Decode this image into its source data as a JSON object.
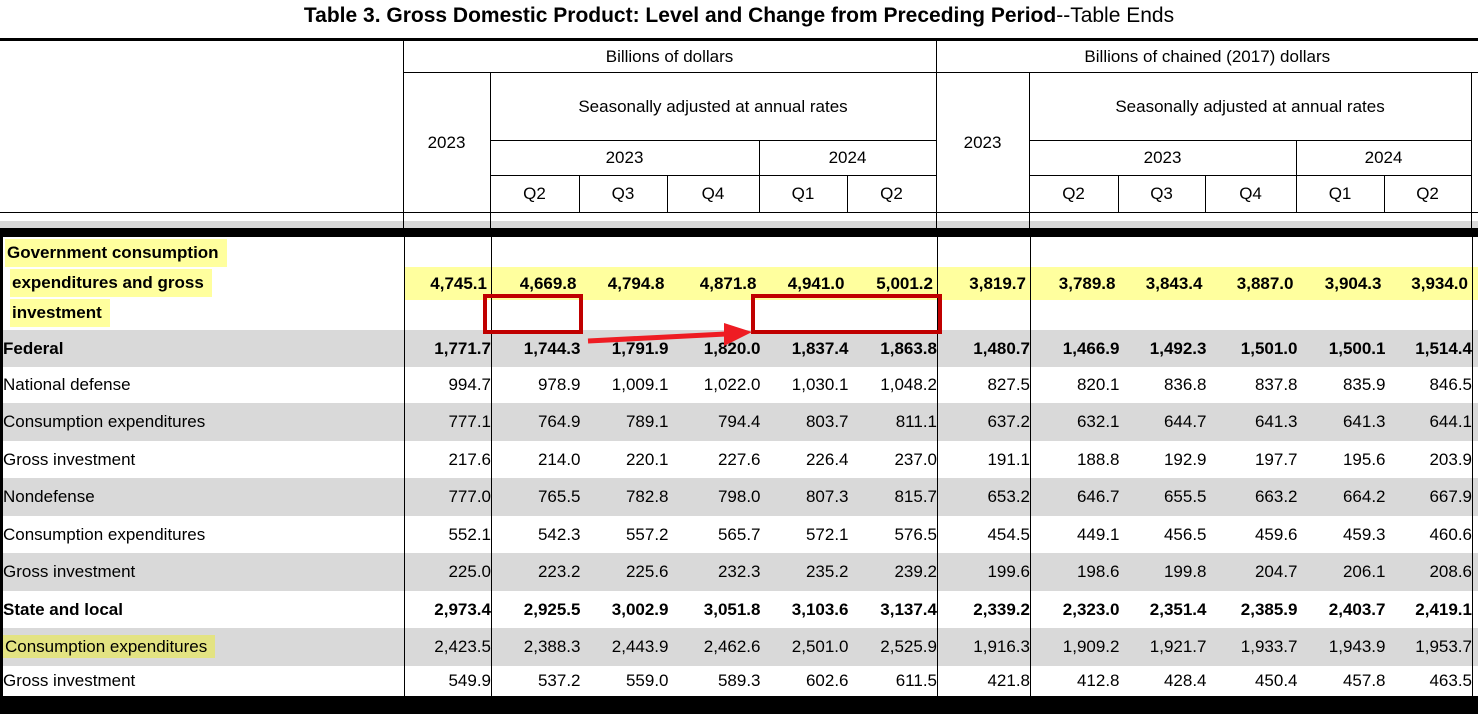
{
  "title": {
    "bold_part": "Table 3. Gross Domestic Product: Level and Change from Preceding Period",
    "suffix": "--Table Ends"
  },
  "header": {
    "left_group": "Billions of dollars",
    "right_group": "Billions of chained (2017) dollars",
    "left_annual": "2023",
    "right_annual": "2023",
    "saar": "Seasonally adjusted at annual rates",
    "left_year1": "2023",
    "left_year2": "2024",
    "right_year1": "2023",
    "right_year2": "2024",
    "quarters": [
      "Q2",
      "Q3",
      "Q4",
      "Q1",
      "Q2"
    ]
  },
  "rows": [
    {
      "label": "Government consumption expenditures and gross investment",
      "label_lines": [
        "Government consumption",
        "expenditures and gross",
        "investment"
      ],
      "level": 0,
      "bold": true,
      "values_highlight": true,
      "values": [
        "4,745.1",
        "4,669.8",
        "4,794.8",
        "4,871.8",
        "4,941.0",
        "5,001.2",
        "3,819.7",
        "3,789.8",
        "3,843.4",
        "3,887.0",
        "3,904.3",
        "3,934.0"
      ]
    },
    {
      "label": "Federal",
      "level": 1,
      "bold": true,
      "values": [
        "1,771.7",
        "1,744.3",
        "1,791.9",
        "1,820.0",
        "1,837.4",
        "1,863.8",
        "1,480.7",
        "1,466.9",
        "1,492.3",
        "1,501.0",
        "1,500.1",
        "1,514.4"
      ]
    },
    {
      "label": "National defense",
      "level": 2,
      "bold": false,
      "values": [
        "994.7",
        "978.9",
        "1,009.1",
        "1,022.0",
        "1,030.1",
        "1,048.2",
        "827.5",
        "820.1",
        "836.8",
        "837.8",
        "835.9",
        "846.5"
      ]
    },
    {
      "label": "Consumption expenditures",
      "level": 3,
      "bold": false,
      "values": [
        "777.1",
        "764.9",
        "789.1",
        "794.4",
        "803.7",
        "811.1",
        "637.2",
        "632.1",
        "644.7",
        "641.3",
        "641.3",
        "644.1"
      ]
    },
    {
      "label": "Gross investment",
      "level": 3,
      "bold": false,
      "values": [
        "217.6",
        "214.0",
        "220.1",
        "227.6",
        "226.4",
        "237.0",
        "191.1",
        "188.8",
        "192.9",
        "197.7",
        "195.6",
        "203.9"
      ]
    },
    {
      "label": "Nondefense",
      "level": 2,
      "bold": false,
      "values": [
        "777.0",
        "765.5",
        "782.8",
        "798.0",
        "807.3",
        "815.7",
        "653.2",
        "646.7",
        "655.5",
        "663.2",
        "664.2",
        "667.9"
      ]
    },
    {
      "label": "Consumption expenditures",
      "level": 3,
      "bold": false,
      "values": [
        "552.1",
        "542.3",
        "557.2",
        "565.7",
        "572.1",
        "576.5",
        "454.5",
        "449.1",
        "456.5",
        "459.6",
        "459.3",
        "460.6"
      ]
    },
    {
      "label": "Gross investment",
      "level": 3,
      "bold": false,
      "values": [
        "225.0",
        "223.2",
        "225.6",
        "232.3",
        "235.2",
        "239.2",
        "199.6",
        "198.6",
        "199.8",
        "204.7",
        "206.1",
        "208.6"
      ]
    },
    {
      "label": "State and local",
      "level": 1,
      "bold": true,
      "values": [
        "2,973.4",
        "2,925.5",
        "3,002.9",
        "3,051.8",
        "3,103.6",
        "3,137.4",
        "2,339.2",
        "2,323.0",
        "2,351.4",
        "2,385.9",
        "2,403.7",
        "2,419.1"
      ]
    },
    {
      "label": "Consumption expenditures",
      "level": 2,
      "bold": false,
      "label_highlight": true,
      "values": [
        "2,423.5",
        "2,388.3",
        "2,443.9",
        "2,462.6",
        "2,501.0",
        "2,525.9",
        "1,916.3",
        "1,909.2",
        "1,921.7",
        "1,933.7",
        "1,943.9",
        "1,953.7"
      ]
    },
    {
      "label": "Gross investment",
      "level": 2,
      "bold": false,
      "values": [
        "549.9",
        "537.2",
        "559.0",
        "589.3",
        "602.6",
        "611.5",
        "421.8",
        "412.8",
        "428.4",
        "450.4",
        "457.8",
        "463.5"
      ]
    }
  ],
  "annotations": {
    "box1_around": "4,669.8",
    "box2_around": "4,941.0 5,001.2",
    "box_color": "#c00000",
    "arrow_color": "#ee1c23",
    "row_highlight_color": "#ffff9e",
    "label_highlight_on_gray_color": "#e3e382",
    "stripe_color": "#d9d9d9"
  }
}
